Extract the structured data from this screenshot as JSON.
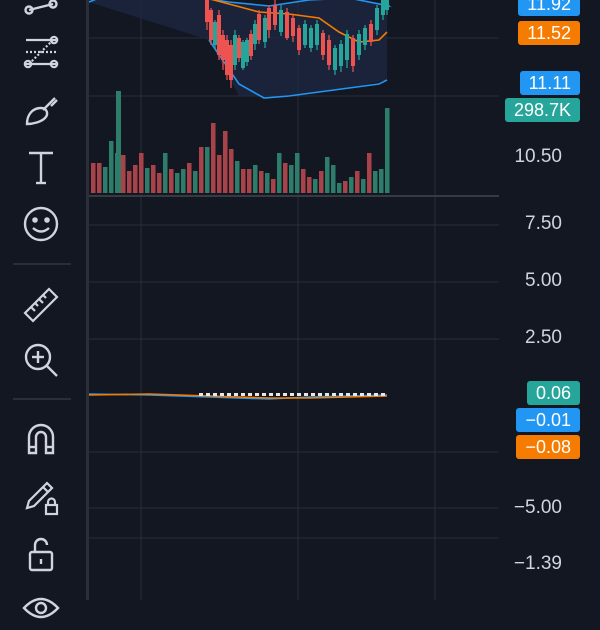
{
  "toolbar": {
    "tools": [
      {
        "name": "trend-line-tool",
        "icon": "trend-line-icon"
      },
      {
        "name": "fib-retracement-tool",
        "icon": "fib-retracement-icon"
      },
      {
        "name": "brush-tool",
        "icon": "brush-icon"
      },
      {
        "name": "text-tool",
        "icon": "text-icon"
      },
      {
        "name": "emoji-tool",
        "icon": "smiley-icon"
      },
      {
        "name": "measure-tool",
        "icon": "ruler-icon"
      },
      {
        "name": "zoom-in-tool",
        "icon": "zoom-in-icon"
      },
      {
        "name": "magnet-tool",
        "icon": "magnet-icon"
      },
      {
        "name": "lock-drawings-tool",
        "icon": "pencil-lock-icon"
      },
      {
        "name": "lock-all-tool",
        "icon": "unlock-icon"
      },
      {
        "name": "eye-tool",
        "icon": "eye-icon"
      }
    ]
  },
  "price_scale": {
    "labels": [
      "10.50"
    ]
  },
  "price_tags": [
    {
      "text": "11.92",
      "color": "blue"
    },
    {
      "text": "11.52",
      "color": "orange"
    },
    {
      "text": "11.11",
      "color": "blue"
    },
    {
      "text": "298.7K",
      "color": "teal"
    }
  ],
  "macd_scale": {
    "labels": [
      "7.50",
      "5.00",
      "2.50",
      "−5.00",
      "−1.39"
    ]
  },
  "macd_tags": [
    {
      "text": "0.06",
      "color": "teal"
    },
    {
      "text": "−0.01",
      "color": "blue"
    },
    {
      "text": "−0.08",
      "color": "orange"
    }
  ],
  "colors": {
    "background": "#131722",
    "up": "#26a69a",
    "down": "#ef5350",
    "volume_up": "#2e7d6a",
    "volume_down": "#a8434a",
    "band": "#2196f3",
    "moving_average": "#f57c00",
    "grid": "#2a2e39",
    "text": "#d1d4dc"
  }
}
